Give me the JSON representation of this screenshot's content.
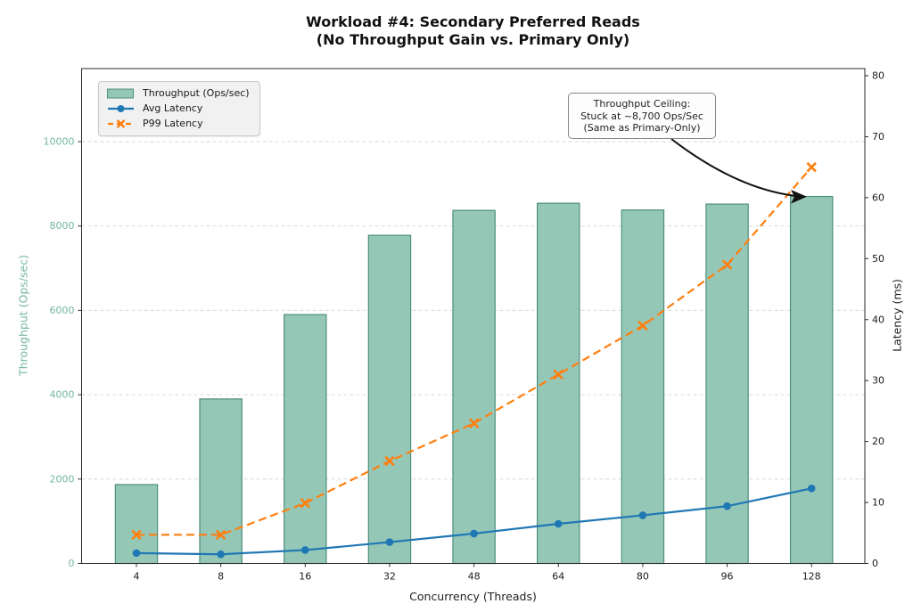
{
  "colors": {
    "bar_fill": "#95c7b7",
    "bar_edge": "#4e8f7e",
    "left_axis_text": "#74b6a4",
    "avg_line": "#1f77b4",
    "p99_line": "#ff7f0e",
    "grid": "#d9d9d9",
    "spine": "#2a2a2a",
    "tick_text": "#1a1a1a",
    "arrow": "#111111"
  },
  "chart_data": {
    "type": "combo-bar-line-dual-axis",
    "title": {
      "line1": "Workload #4: Secondary Preferred Reads",
      "line2": "(No Throughput Gain vs. Primary Only)"
    },
    "categories": [
      "4",
      "8",
      "16",
      "32",
      "48",
      "64",
      "80",
      "96",
      "128"
    ],
    "xlabel": "Concurrency (Threads)",
    "left_axis": {
      "label": "Throughput (Ops/sec)",
      "ticks": [
        0,
        2000,
        4000,
        6000,
        8000,
        10000
      ],
      "range": [
        0,
        11800
      ]
    },
    "right_axis": {
      "label": "Latency (ms)",
      "ticks": [
        0,
        10,
        20,
        30,
        40,
        50,
        60,
        70,
        80
      ],
      "range": [
        0,
        80
      ]
    },
    "grid": {
      "horizontal_dashed_on_left_ticks": true
    },
    "legend_position": "upper left",
    "series": [
      {
        "name": "Throughput (Ops/sec)",
        "type": "bar",
        "axis": "left",
        "values": [
          1870,
          3900,
          5900,
          7780,
          8370,
          8540,
          8380,
          8520,
          8700
        ]
      },
      {
        "name": "Avg Latency",
        "type": "line",
        "style": "solid",
        "marker": "circle",
        "axis": "right",
        "values": [
          1.7,
          1.5,
          2.2,
          3.5,
          4.9,
          6.5,
          7.9,
          9.4,
          12.3
        ]
      },
      {
        "name": "P99 Latency",
        "type": "line",
        "style": "dashed",
        "marker": "x",
        "axis": "right",
        "values": [
          4.7,
          4.7,
          9.9,
          16.8,
          23,
          31,
          39,
          49,
          65
        ]
      }
    ],
    "annotation": {
      "line1": "Throughput Ceiling:",
      "line2": "Stuck at ~8,700 Ops/Sec",
      "line3": "(Same as Primary-Only)",
      "arrow_target": "top of 128-thread bar (~8,700 Ops/sec)"
    }
  }
}
